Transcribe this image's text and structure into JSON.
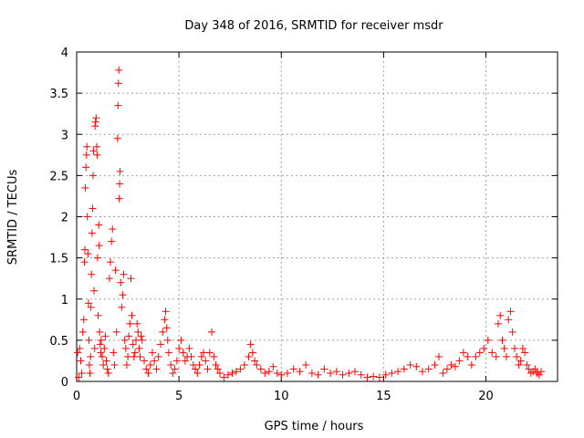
{
  "chart_data": {
    "type": "scatter",
    "title": "Day 348 of 2016, SRMTID for receiver msdr",
    "xlabel": "GPS time / hours",
    "ylabel": "SRMTID / TECUs",
    "xlim": [
      0,
      23.5
    ],
    "ylim": [
      0,
      4
    ],
    "xticks": [
      0,
      5,
      10,
      15,
      20
    ],
    "yticks": [
      0,
      0.5,
      1,
      1.5,
      2,
      2.5,
      3,
      3.5,
      4
    ],
    "ytick_labels": [
      "0",
      "0.5",
      "1",
      "1.5",
      "2",
      "2.5",
      "3",
      "3.5",
      "4"
    ],
    "grid": true,
    "marker": "+",
    "series": [
      {
        "name": "SRMTID",
        "color": "#ff0000",
        "points": [
          [
            0.05,
            0.35
          ],
          [
            0.1,
            0.05
          ],
          [
            0.15,
            0.4
          ],
          [
            0.2,
            0.25
          ],
          [
            0.25,
            0.1
          ],
          [
            0.3,
            0.6
          ],
          [
            0.35,
            0.75
          ],
          [
            0.38,
            1.45
          ],
          [
            0.4,
            1.6
          ],
          [
            0.42,
            2.35
          ],
          [
            0.45,
            2.6
          ],
          [
            0.48,
            2.75
          ],
          [
            0.5,
            2.85
          ],
          [
            0.52,
            2.0
          ],
          [
            0.55,
            1.55
          ],
          [
            0.58,
            0.95
          ],
          [
            0.6,
            0.5
          ],
          [
            0.62,
            0.2
          ],
          [
            0.65,
            0.1
          ],
          [
            0.68,
            0.3
          ],
          [
            0.7,
            0.9
          ],
          [
            0.72,
            1.3
          ],
          [
            0.75,
            1.8
          ],
          [
            0.78,
            2.1
          ],
          [
            0.8,
            2.5
          ],
          [
            0.82,
            2.8
          ],
          [
            0.85,
            1.1
          ],
          [
            0.88,
            0.4
          ],
          [
            0.9,
            3.1
          ],
          [
            0.92,
            3.15
          ],
          [
            0.95,
            3.2
          ],
          [
            0.98,
            2.85
          ],
          [
            1.0,
            2.75
          ],
          [
            1.02,
            1.5
          ],
          [
            1.05,
            0.8
          ],
          [
            1.08,
            1.9
          ],
          [
            1.1,
            1.65
          ],
          [
            1.12,
            0.6
          ],
          [
            1.15,
            0.45
          ],
          [
            1.18,
            0.35
          ],
          [
            1.2,
            0.5
          ],
          [
            1.25,
            0.3
          ],
          [
            1.3,
            0.2
          ],
          [
            1.35,
            0.4
          ],
          [
            1.4,
            0.55
          ],
          [
            1.45,
            0.25
          ],
          [
            1.5,
            0.15
          ],
          [
            1.55,
            0.1
          ],
          [
            1.6,
            1.25
          ],
          [
            1.65,
            1.45
          ],
          [
            1.7,
            1.7
          ],
          [
            1.75,
            1.85
          ],
          [
            1.8,
            0.35
          ],
          [
            1.85,
            0.2
          ],
          [
            1.9,
            1.35
          ],
          [
            1.95,
            0.6
          ],
          [
            2.0,
            2.95
          ],
          [
            2.02,
            3.35
          ],
          [
            2.04,
            3.62
          ],
          [
            2.06,
            3.78
          ],
          [
            2.08,
            2.22
          ],
          [
            2.1,
            2.4
          ],
          [
            2.12,
            2.55
          ],
          [
            2.15,
            1.2
          ],
          [
            2.2,
            0.9
          ],
          [
            2.25,
            1.05
          ],
          [
            2.3,
            1.3
          ],
          [
            2.35,
            0.5
          ],
          [
            2.4,
            0.4
          ],
          [
            2.45,
            0.2
          ],
          [
            2.5,
            0.3
          ],
          [
            2.55,
            0.55
          ],
          [
            2.6,
            0.7
          ],
          [
            2.65,
            1.25
          ],
          [
            2.7,
            0.8
          ],
          [
            2.75,
            0.45
          ],
          [
            2.8,
            0.3
          ],
          [
            2.85,
            0.35
          ],
          [
            2.9,
            0.5
          ],
          [
            2.95,
            0.7
          ],
          [
            3.0,
            0.6
          ],
          [
            3.05,
            0.4
          ],
          [
            3.1,
            0.3
          ],
          [
            3.15,
            0.55
          ],
          [
            3.2,
            0.5
          ],
          [
            3.3,
            0.25
          ],
          [
            3.4,
            0.15
          ],
          [
            3.5,
            0.1
          ],
          [
            3.6,
            0.2
          ],
          [
            3.7,
            0.35
          ],
          [
            3.8,
            0.25
          ],
          [
            3.9,
            0.15
          ],
          [
            4.0,
            0.3
          ],
          [
            4.1,
            0.45
          ],
          [
            4.2,
            0.6
          ],
          [
            4.3,
            0.75
          ],
          [
            4.35,
            0.85
          ],
          [
            4.4,
            0.65
          ],
          [
            4.45,
            0.5
          ],
          [
            4.5,
            0.35
          ],
          [
            4.6,
            0.2
          ],
          [
            4.7,
            0.1
          ],
          [
            4.8,
            0.15
          ],
          [
            4.9,
            0.25
          ],
          [
            5.0,
            0.4
          ],
          [
            5.1,
            0.5
          ],
          [
            5.2,
            0.35
          ],
          [
            5.3,
            0.25
          ],
          [
            5.4,
            0.3
          ],
          [
            5.5,
            0.4
          ],
          [
            5.6,
            0.3
          ],
          [
            5.7,
            0.2
          ],
          [
            5.8,
            0.15
          ],
          [
            5.9,
            0.1
          ],
          [
            6.0,
            0.2
          ],
          [
            6.1,
            0.3
          ],
          [
            6.2,
            0.35
          ],
          [
            6.3,
            0.25
          ],
          [
            6.4,
            0.15
          ],
          [
            6.5,
            0.35
          ],
          [
            6.6,
            0.6
          ],
          [
            6.7,
            0.3
          ],
          [
            6.8,
            0.2
          ],
          [
            6.9,
            0.15
          ],
          [
            7.0,
            0.1
          ],
          [
            7.2,
            0.05
          ],
          [
            7.4,
            0.08
          ],
          [
            7.6,
            0.1
          ],
          [
            7.8,
            0.12
          ],
          [
            8.0,
            0.15
          ],
          [
            8.2,
            0.2
          ],
          [
            8.4,
            0.3
          ],
          [
            8.5,
            0.45
          ],
          [
            8.6,
            0.35
          ],
          [
            8.7,
            0.25
          ],
          [
            8.8,
            0.2
          ],
          [
            9.0,
            0.15
          ],
          [
            9.2,
            0.1
          ],
          [
            9.4,
            0.12
          ],
          [
            9.6,
            0.18
          ],
          [
            9.8,
            0.1
          ],
          [
            10.0,
            0.08
          ],
          [
            10.3,
            0.1
          ],
          [
            10.6,
            0.15
          ],
          [
            10.9,
            0.12
          ],
          [
            11.2,
            0.2
          ],
          [
            11.5,
            0.1
          ],
          [
            11.8,
            0.08
          ],
          [
            12.1,
            0.15
          ],
          [
            12.4,
            0.1
          ],
          [
            12.7,
            0.12
          ],
          [
            13.0,
            0.08
          ],
          [
            13.3,
            0.1
          ],
          [
            13.6,
            0.12
          ],
          [
            13.9,
            0.08
          ],
          [
            14.2,
            0.05
          ],
          [
            14.5,
            0.06
          ],
          [
            14.8,
            0.05
          ],
          [
            15.1,
            0.08
          ],
          [
            15.4,
            0.1
          ],
          [
            15.7,
            0.12
          ],
          [
            16.0,
            0.15
          ],
          [
            16.3,
            0.2
          ],
          [
            16.6,
            0.18
          ],
          [
            16.9,
            0.12
          ],
          [
            17.2,
            0.15
          ],
          [
            17.5,
            0.2
          ],
          [
            17.7,
            0.3
          ],
          [
            17.9,
            0.1
          ],
          [
            18.1,
            0.15
          ],
          [
            18.3,
            0.2
          ],
          [
            18.5,
            0.18
          ],
          [
            18.7,
            0.25
          ],
          [
            18.9,
            0.35
          ],
          [
            19.1,
            0.3
          ],
          [
            19.3,
            0.2
          ],
          [
            19.5,
            0.3
          ],
          [
            19.7,
            0.35
          ],
          [
            19.9,
            0.4
          ],
          [
            20.1,
            0.5
          ],
          [
            20.3,
            0.35
          ],
          [
            20.5,
            0.3
          ],
          [
            20.6,
            0.7
          ],
          [
            20.7,
            0.8
          ],
          [
            20.8,
            0.5
          ],
          [
            20.9,
            0.4
          ],
          [
            21.0,
            0.3
          ],
          [
            21.1,
            0.75
          ],
          [
            21.2,
            0.85
          ],
          [
            21.3,
            0.6
          ],
          [
            21.4,
            0.4
          ],
          [
            21.5,
            0.3
          ],
          [
            21.6,
            0.2
          ],
          [
            21.7,
            0.25
          ],
          [
            21.8,
            0.4
          ],
          [
            21.9,
            0.35
          ],
          [
            22.0,
            0.2
          ],
          [
            22.1,
            0.15
          ],
          [
            22.2,
            0.1
          ],
          [
            22.3,
            0.12
          ],
          [
            22.4,
            0.15
          ],
          [
            22.5,
            0.1
          ],
          [
            22.6,
            0.08
          ],
          [
            22.7,
            0.12
          ]
        ]
      }
    ]
  }
}
